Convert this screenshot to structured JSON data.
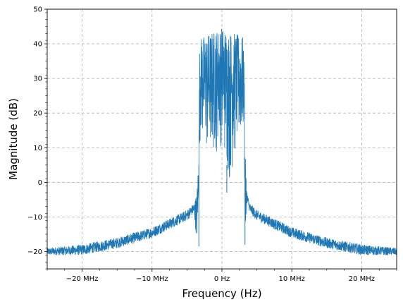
{
  "chart_data": {
    "type": "line",
    "title": "",
    "xlabel": "Frequency (Hz)",
    "ylabel": "Magnitude (dB)",
    "xlim": [
      -25000000,
      25000000
    ],
    "ylim": [
      -25,
      50
    ],
    "grid": true,
    "line_color": "#1f77b4",
    "grid_color": "#b0b0b0",
    "x_ticks": [
      {
        "value": -20000000,
        "label": "−20 MHz"
      },
      {
        "value": -10000000,
        "label": "−10 MHz"
      },
      {
        "value": 0,
        "label": "0 Hz"
      },
      {
        "value": 10000000,
        "label": "10 MHz"
      },
      {
        "value": 20000000,
        "label": "20 MHz"
      }
    ],
    "y_ticks": [
      {
        "value": -20,
        "label": "−20"
      },
      {
        "value": -10,
        "label": "−10"
      },
      {
        "value": 0,
        "label": "0"
      },
      {
        "value": 10,
        "label": "10"
      },
      {
        "value": 20,
        "label": "20"
      },
      {
        "value": 30,
        "label": "30"
      },
      {
        "value": 40,
        "label": "40"
      },
      {
        "value": 50,
        "label": "50"
      }
    ],
    "series": [
      {
        "upper_envelope": {
          "x": [
            -25000000,
            -20000000,
            -15000000,
            -10000000,
            -7000000,
            -5000000,
            -4000000,
            -3600000,
            -3300000,
            -3200000,
            -3000000,
            -2000000,
            0,
            2000000,
            3000000,
            3200000,
            3300000,
            3600000,
            4000000,
            5000000,
            7000000,
            10000000,
            15000000,
            20000000,
            25000000
          ],
          "y": [
            -19,
            -18,
            -16,
            -13,
            -10,
            -8,
            -6,
            -3,
            10,
            38,
            42,
            43,
            45,
            43,
            42,
            34,
            10,
            -3,
            -6,
            -8,
            -10,
            -13,
            -16,
            -18,
            -19
          ]
        },
        "lower_envelope": {
          "x": [
            -25000000,
            -20000000,
            -15000000,
            -10000000,
            -7000000,
            -5000000,
            -4000000,
            -3600000,
            -3300000,
            -3200000,
            -3000000,
            -2000000,
            -1000000,
            0,
            1000000,
            2000000,
            3000000,
            3200000,
            3300000,
            3600000,
            4000000,
            5000000,
            7000000,
            10000000,
            15000000,
            20000000,
            25000000
          ],
          "y": [
            -21,
            -21,
            -19,
            -16,
            -13,
            -11,
            -9,
            -17,
            -5,
            12,
            10,
            4,
            6,
            10,
            -3,
            6,
            10,
            15,
            -18,
            -6,
            -9,
            -11,
            -13,
            -16,
            -19,
            -21,
            -21
          ]
        }
      }
    ]
  }
}
